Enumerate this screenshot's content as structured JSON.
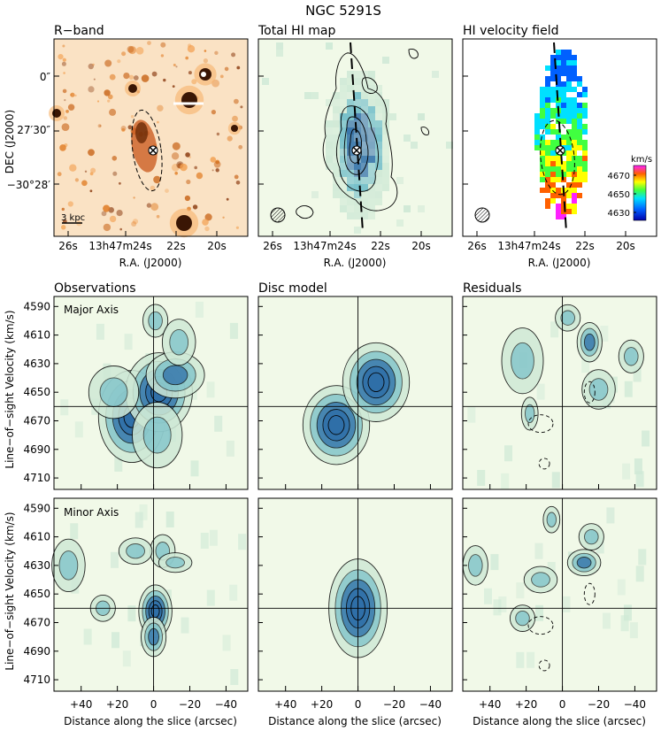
{
  "figure": {
    "title": "NGC 5291S",
    "colors": {
      "bg_panel": "#f1f9e8",
      "contour": "#000000",
      "hi_light": "#cfe9d6",
      "hi_mid": "#6fbcc8",
      "hi_dark": "#2f6fa8",
      "optical": "#f2953a"
    }
  },
  "top_panels": [
    {
      "id": "rband",
      "title": "R−band",
      "scale_label": "3 kpc"
    },
    {
      "id": "himap",
      "title": "Total HI map"
    },
    {
      "id": "velfield",
      "title": "HI velocity field",
      "cbar_unit": "km/s",
      "cbar_ticks": [
        "4670",
        "4650",
        "4630"
      ]
    }
  ],
  "top_axes": {
    "y_label": "DEC (J2000)",
    "y_ticks": [
      "0″",
      "27′30″",
      "−30°28′"
    ],
    "x_ticks": [
      "26s",
      "13h47m24s",
      "22s",
      "20s"
    ],
    "x_label": "R.A. (J2000)"
  },
  "pv_titles": [
    "Observations",
    "Disc model",
    "Residuals"
  ],
  "row_labels": [
    "Major Axis",
    "Minor Axis"
  ],
  "pv_axes": {
    "y_label": "Line−of−sight Velocity (km/s)",
    "y_ticks": [
      "4590",
      "4610",
      "4630",
      "4650",
      "4670",
      "4690",
      "4710"
    ],
    "x_ticks": [
      "+40",
      "+20",
      "0",
      "−20",
      "−40"
    ],
    "x_label": "Distance along the slice (arcsec)"
  },
  "chart_data": {
    "type": "heatmap",
    "title": "NGC 5291S",
    "pv_diagrams": {
      "x_axis": "Distance along the slice (arcsec)",
      "x_range": [
        55,
        -52
      ],
      "y_axis": "Line-of-sight Velocity (km/s)",
      "y_range": [
        4583,
        4718
      ],
      "center_lines": {
        "x": 0,
        "y": 4660
      },
      "major_axis": {
        "observations": [
          [
            12,
            4667,
            8,
            14,
            0.9
          ],
          [
            -3,
            4650,
            8,
            12,
            0.9
          ],
          [
            -12,
            4638,
            7,
            7,
            0.7
          ],
          [
            -1,
            4600,
            3,
            5,
            0.5
          ],
          [
            -14,
            4615,
            4,
            7,
            0.5
          ],
          [
            22,
            4650,
            6,
            8,
            0.5
          ],
          [
            -2,
            4680,
            6,
            10,
            0.5
          ]
        ],
        "disc_model": [
          [
            12,
            4673,
            8,
            12,
            1.0
          ],
          [
            -10,
            4643,
            8,
            12,
            1.0
          ]
        ],
        "residuals": [
          [
            -15,
            4615,
            3,
            6,
            0.7
          ],
          [
            22,
            4628,
            5,
            10,
            0.5
          ],
          [
            -3,
            4598,
            3,
            4,
            0.4
          ],
          [
            -20,
            4648,
            4,
            6,
            0.4
          ],
          [
            18,
            4665,
            2,
            5,
            0.4
          ],
          [
            -38,
            4625,
            3,
            5,
            0.3
          ]
        ]
      },
      "minor_axis": {
        "observations": [
          [
            -1,
            4662,
            4,
            8,
            1.0
          ],
          [
            0,
            4680,
            3,
            6,
            0.6
          ],
          [
            -5,
            4620,
            3,
            5,
            0.5
          ],
          [
            10,
            4620,
            4,
            4,
            0.4
          ],
          [
            -12,
            4628,
            4,
            3,
            0.4
          ],
          [
            47,
            4630,
            4,
            8,
            0.4
          ],
          [
            28,
            4660,
            3,
            4,
            0.3
          ]
        ],
        "disc_model": [
          [
            0,
            4660,
            7,
            15,
            1.0
          ]
        ],
        "residuals": [
          [
            -12,
            4628,
            4,
            4,
            0.6
          ],
          [
            12,
            4640,
            4,
            4,
            0.4
          ],
          [
            22,
            4667,
            3,
            4,
            0.4
          ],
          [
            -16,
            4610,
            3,
            4,
            0.3
          ],
          [
            48,
            4630,
            3,
            6,
            0.4
          ],
          [
            6,
            4598,
            2,
            4,
            0.3
          ]
        ]
      },
      "component_format": [
        "offset_arcsec",
        "velocity_kms",
        "sigma_offset",
        "sigma_velocity",
        "peak_fraction"
      ]
    },
    "velocity_field": {
      "colorbar_range_kms": [
        4625,
        4680
      ]
    }
  }
}
